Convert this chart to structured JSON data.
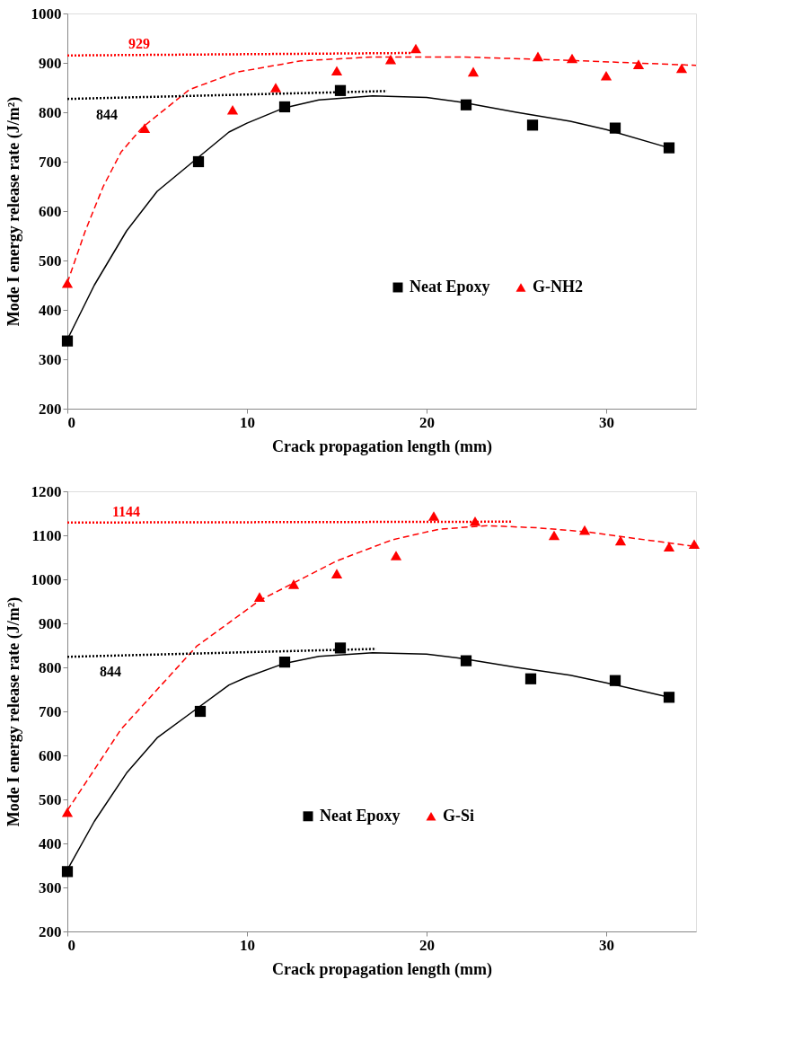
{
  "chart_data": [
    {
      "type": "scatter",
      "xlabel": "Crack propagation length (mm)",
      "ylabel": "Mode I energy release rate (J/m²)",
      "xlim": [
        0,
        35
      ],
      "xticks": [
        0,
        10,
        20,
        30
      ],
      "ylim": [
        200,
        1000
      ],
      "yticks": [
        200,
        300,
        400,
        500,
        600,
        700,
        800,
        900,
        1000
      ],
      "grid": false,
      "legend": "bottom right",
      "series": [
        {
          "type": "line",
          "color": "#000000",
          "line_style": "solid",
          "marker": "none",
          "x": [
            0,
            1.5,
            3.3,
            5,
            7,
            9,
            10,
            12,
            14,
            17,
            20,
            22,
            25,
            28,
            30,
            33.5
          ],
          "values": [
            340,
            450,
            560,
            640,
            700,
            760,
            778,
            808,
            825,
            833,
            830,
            820,
            800,
            782,
            765,
            728
          ]
        },
        {
          "type": "line",
          "color": "#ff0000",
          "line_style": "dashed",
          "marker": "none",
          "x": [
            0,
            1,
            2,
            3,
            4.2,
            6.8,
            9.4,
            13,
            17,
            22,
            28,
            35
          ],
          "values": [
            455,
            560,
            650,
            720,
            770,
            846,
            881,
            904,
            912,
            912,
            905,
            895
          ]
        },
        {
          "type": "line",
          "color": "#000000",
          "line_style": "dotted",
          "marker": "none",
          "x": [
            0,
            17.8
          ],
          "values": [
            827,
            843
          ]
        },
        {
          "type": "line",
          "color": "#ff0000",
          "line_style": "dotted",
          "marker": "none",
          "x": [
            0,
            19.2
          ],
          "values": [
            915,
            920
          ]
        },
        {
          "name": "Neat Epoxy",
          "color": "#000000",
          "marker": "square",
          "x": [
            0,
            7.3,
            12.1,
            15.2,
            22.2,
            25.9,
            30.5,
            33.5
          ],
          "values": [
            337,
            700,
            811,
            844,
            815,
            774,
            768,
            728
          ]
        },
        {
          "name": "G-NH2",
          "color": "#ff0000",
          "marker": "triangle",
          "x": [
            0,
            4.3,
            9.2,
            11.6,
            15.0,
            18.0,
            19.4,
            22.6,
            26.2,
            28.1,
            30.0,
            31.8,
            34.2
          ],
          "values": [
            454,
            768,
            805,
            850,
            884,
            907,
            929,
            882,
            913,
            909,
            874,
            897,
            889
          ]
        }
      ],
      "annotations": [
        {
          "text": "929",
          "x": 3.4,
          "y": 916
        },
        {
          "text": "844",
          "x": 1.6,
          "y": 828
        }
      ]
    },
    {
      "type": "scatter",
      "xlabel": "Crack propagation length (mm)",
      "ylabel": "Mode I energy release rate (J/m²)",
      "xlim": [
        0,
        35
      ],
      "xticks": [
        0,
        10,
        20,
        30
      ],
      "ylim": [
        200,
        1200
      ],
      "yticks": [
        200,
        300,
        400,
        500,
        600,
        700,
        800,
        900,
        1000,
        1100,
        1200
      ],
      "grid": false,
      "legend": "bottom",
      "series": [
        {
          "type": "line",
          "color": "#000000",
          "line_style": "solid",
          "marker": "none",
          "x": [
            0,
            1.5,
            3.3,
            5,
            7,
            9,
            10,
            12,
            14,
            17,
            20,
            22,
            25,
            28,
            30,
            33.5
          ],
          "values": [
            340,
            450,
            560,
            640,
            700,
            760,
            778,
            808,
            825,
            833,
            830,
            820,
            800,
            782,
            765,
            732
          ]
        },
        {
          "type": "line",
          "color": "#ff0000",
          "line_style": "dashed",
          "marker": "none",
          "x": [
            0,
            3,
            7.2,
            10.7,
            15,
            18.1,
            20.7,
            23.4,
            26.2,
            28.9,
            31.6,
            34.9
          ],
          "values": [
            475,
            660,
            848,
            952,
            1042,
            1090,
            1114,
            1122,
            1117,
            1108,
            1093,
            1075
          ]
        },
        {
          "type": "line",
          "color": "#000000",
          "line_style": "dotted",
          "marker": "none",
          "x": [
            0,
            17.2
          ],
          "values": [
            824,
            842
          ]
        },
        {
          "type": "line",
          "color": "#ff0000",
          "line_style": "dotted",
          "marker": "none",
          "x": [
            0,
            24.7
          ],
          "values": [
            1129,
            1131
          ]
        },
        {
          "name": "Neat Epoxy",
          "color": "#000000",
          "marker": "square",
          "x": [
            0,
            7.4,
            12.1,
            15.2,
            22.2,
            25.8,
            30.5,
            33.5
          ],
          "values": [
            336,
            700,
            812,
            844,
            815,
            774,
            770,
            732
          ]
        },
        {
          "name": "G-Si",
          "color": "#ff0000",
          "marker": "triangle",
          "x": [
            0,
            10.7,
            12.6,
            15.0,
            18.3,
            20.4,
            22.7,
            27.1,
            28.8,
            30.8,
            33.5,
            34.9
          ],
          "values": [
            471,
            960,
            989,
            1013,
            1054,
            1144,
            1132,
            1100,
            1112,
            1088,
            1074,
            1080
          ]
        }
      ],
      "annotations": [
        {
          "text": "1144",
          "x": 2.5,
          "y": 1129
        },
        {
          "text": "844",
          "x": 1.8,
          "y": 826
        }
      ]
    }
  ]
}
